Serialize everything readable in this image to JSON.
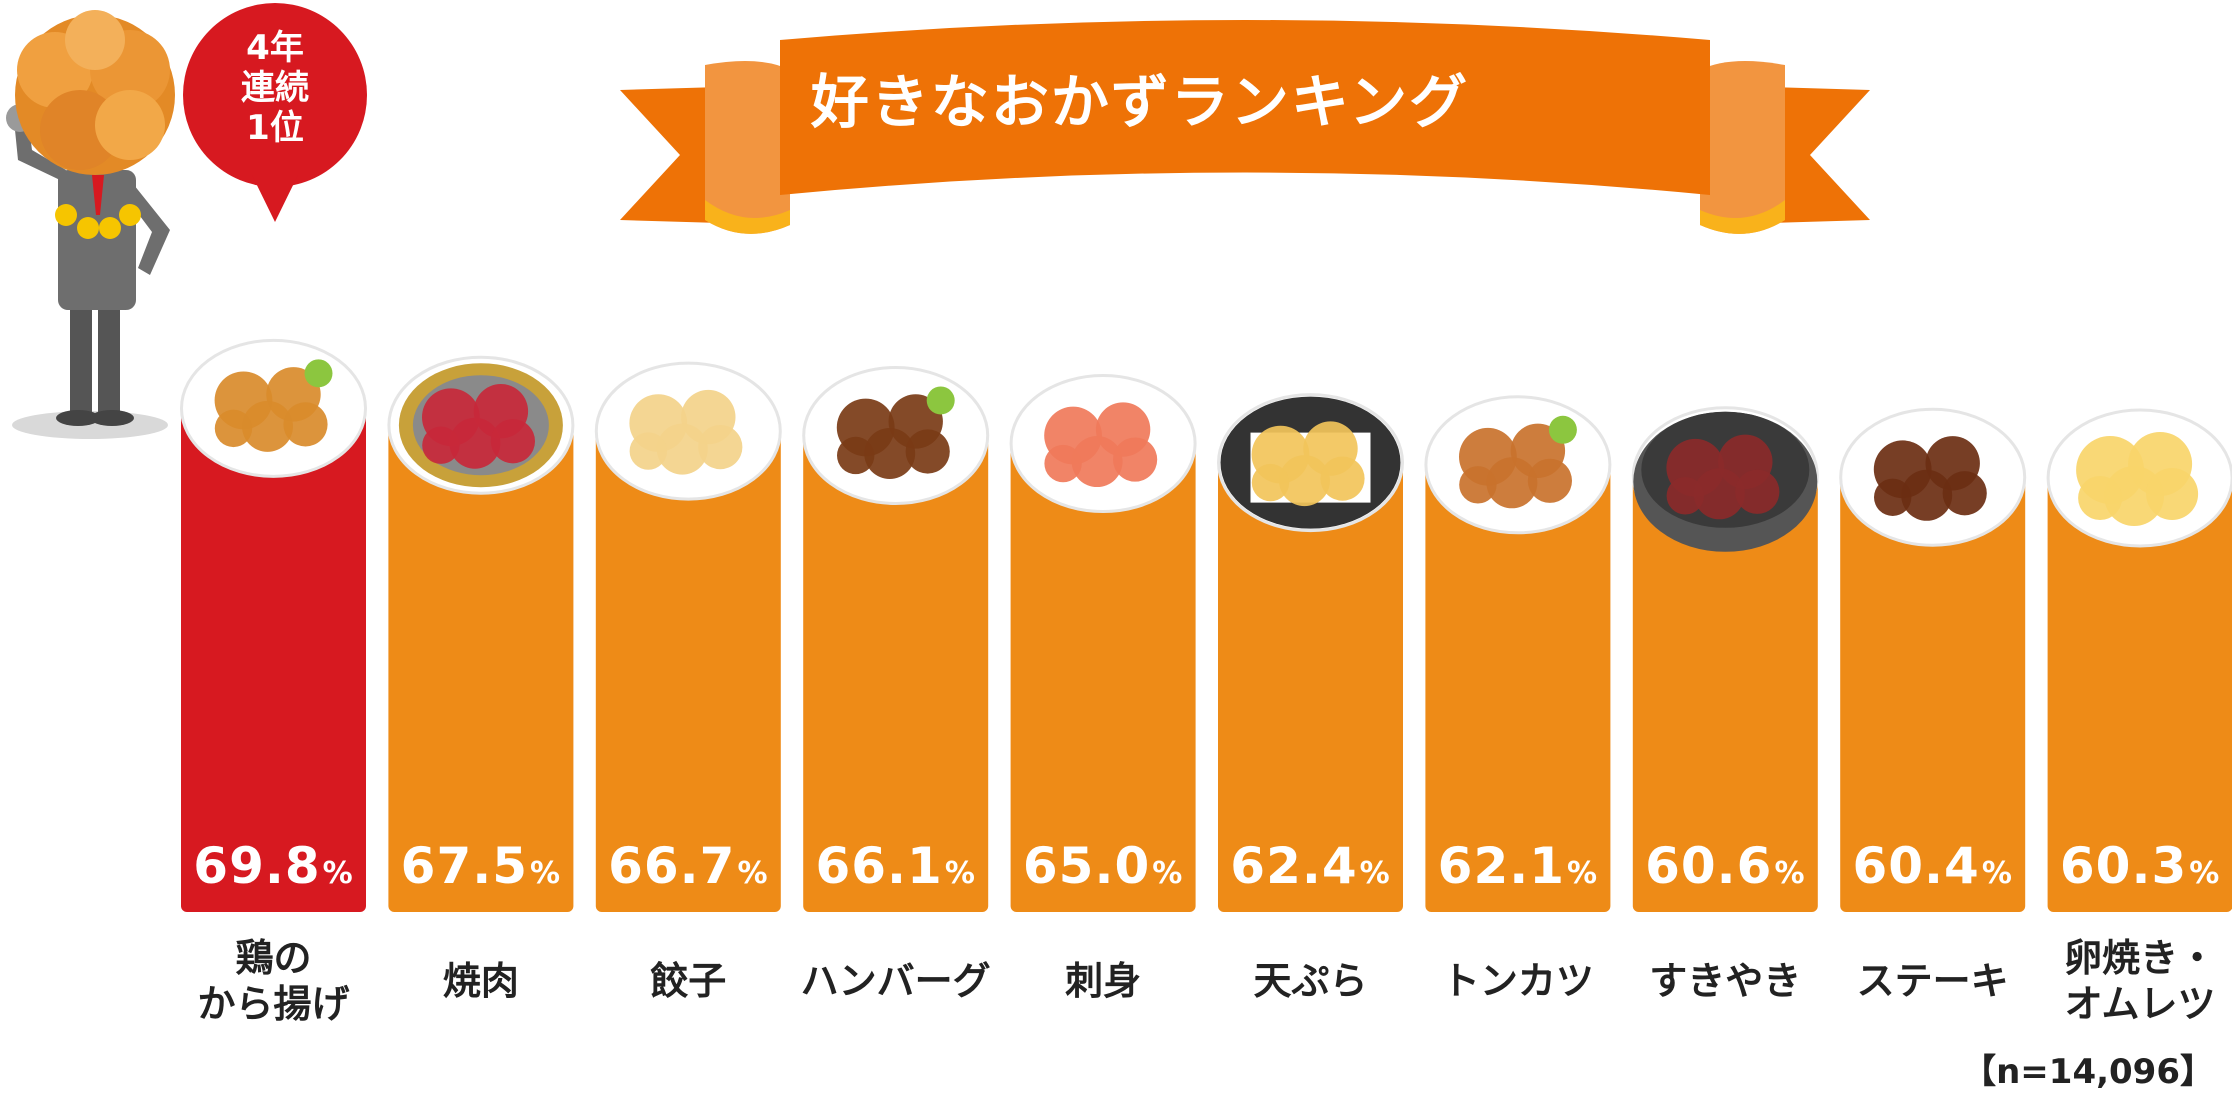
{
  "title": "好きなおかずランキング",
  "badge": {
    "line1": "4年",
    "line2": "連続",
    "line3": "1位"
  },
  "sample_size": "【n=14,096】",
  "colors": {
    "accent": "#e08a1a",
    "top": "#d71920",
    "bar": "#ee8b17",
    "ribbon": "#ee7206"
  },
  "chart_data": {
    "type": "bar",
    "title": "好きなおかずランキング",
    "categories": [
      "鶏の\nから揚げ",
      "焼肉",
      "餃子",
      "ハンバーグ",
      "刺身",
      "天ぷら",
      "トンカツ",
      "すきやき",
      "ステーキ",
      "卵焼き・\nオムレツ"
    ],
    "values": [
      69.8,
      67.5,
      66.7,
      66.1,
      65.0,
      62.4,
      62.1,
      60.6,
      60.4,
      60.3
    ],
    "value_labels": [
      "69.8",
      "67.5",
      "66.7",
      "66.1",
      "65.0",
      "62.4",
      "62.1",
      "60.6",
      "60.4",
      "60.3"
    ],
    "unit": "%",
    "food_icons": [
      "karaage-icon",
      "yakiniku-icon",
      "gyoza-icon",
      "hamburg-icon",
      "sashimi-icon",
      "tempura-icon",
      "tonkatsu-icon",
      "sukiyaki-icon",
      "steak-icon",
      "tamagoyaki-icon"
    ],
    "xlabel": "",
    "ylabel": "",
    "grid": false
  }
}
